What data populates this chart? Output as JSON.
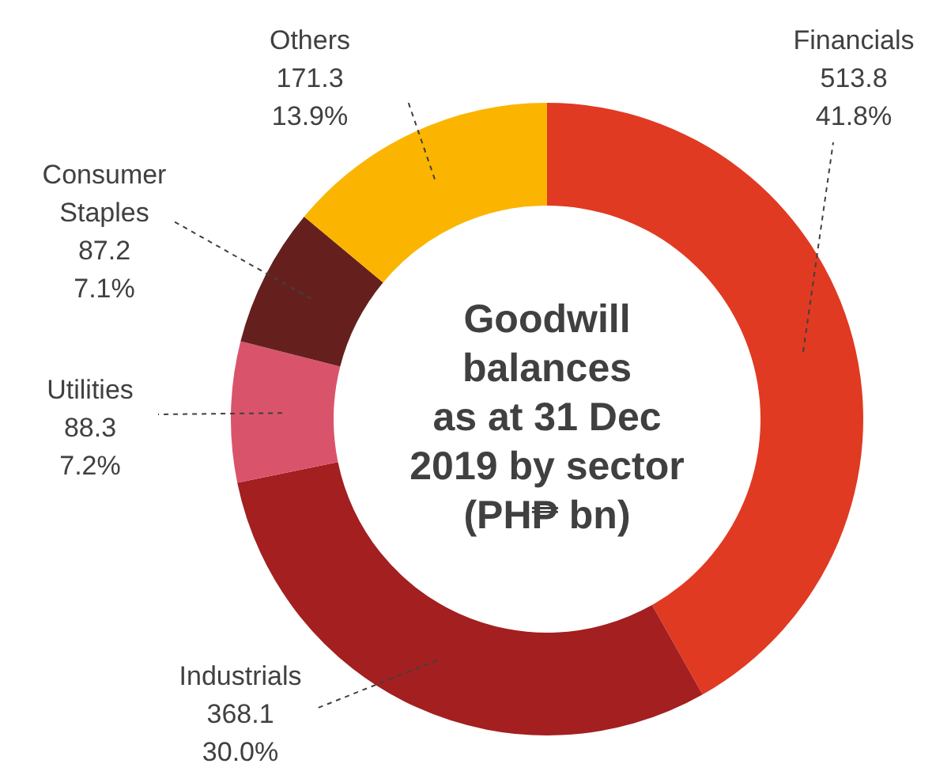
{
  "chart_data": {
    "type": "donut",
    "title": "Goodwill\nbalances\nas at 31 Dec\n2019 by sector\n(PH₱ bn)",
    "categories": [
      "Financials",
      "Industrials",
      "Utilities",
      "Consumer\nStaples",
      "Others"
    ],
    "values": [
      513.8,
      368.1,
      88.3,
      87.2,
      171.3
    ],
    "colors": [
      "#e03a23",
      "#a31f20",
      "#d9546b",
      "#65201e",
      "#fbb500"
    ],
    "value_labels": [
      "513.8\n41.8%",
      "368.1\n30.0%",
      "88.3\n7.2%",
      "87.2\n7.1%",
      "171.3\n13.9%"
    ],
    "legend": false
  }
}
